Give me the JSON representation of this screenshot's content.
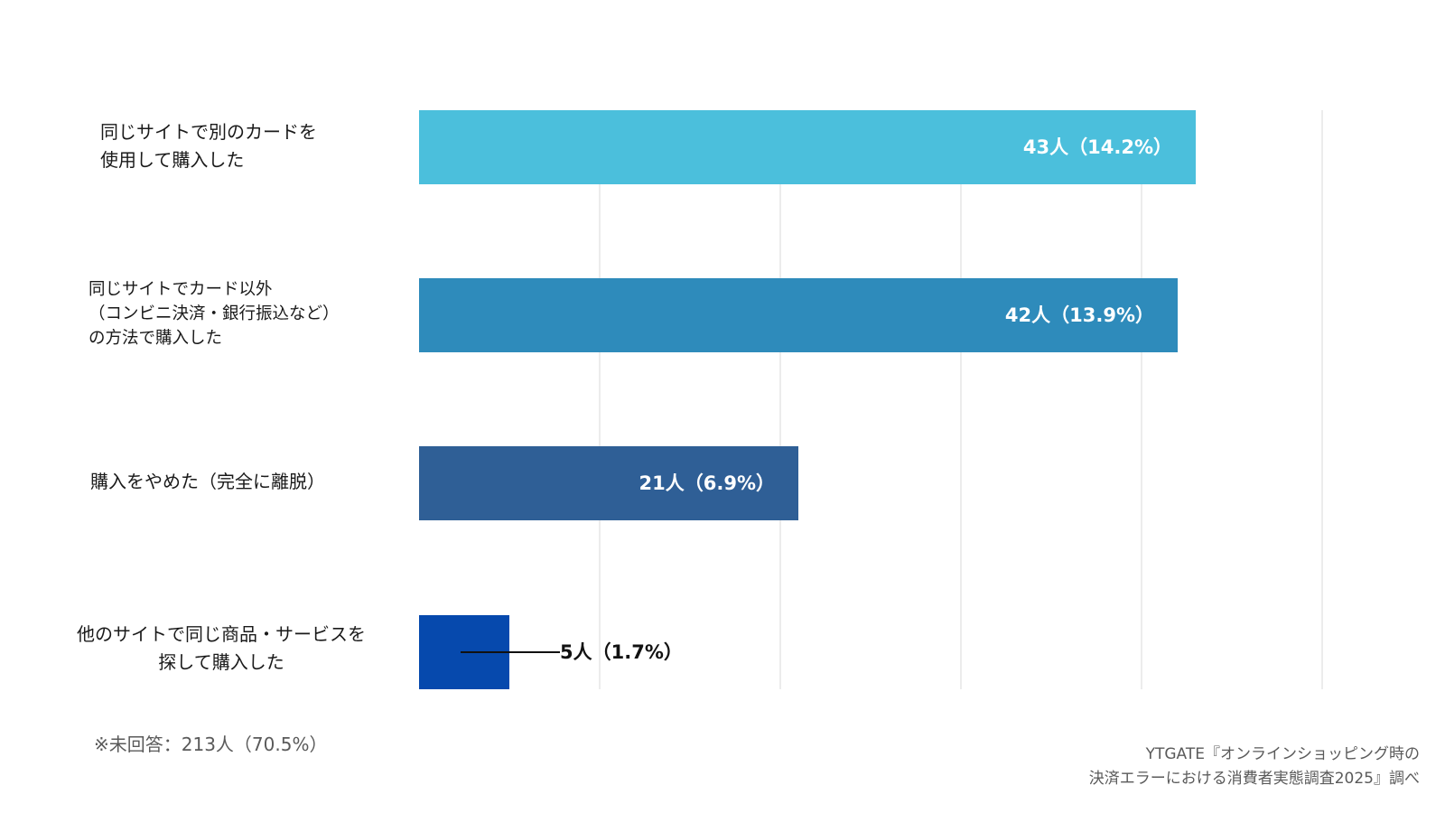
{
  "chart_data": {
    "type": "bar",
    "orientation": "horizontal",
    "categories": [
      [
        "同じサイトで別のカードを",
        "使用して購入した"
      ],
      [
        "同じサイトでカード以外",
        "（コンビニ決済・銀行振込など）",
        "の方法で購入した"
      ],
      [
        "購入をやめた（完全に離脱）"
      ],
      [
        "他のサイトで同じ商品・サービスを",
        "探して購入した"
      ]
    ],
    "values": [
      43,
      42,
      21,
      5
    ],
    "data_labels": [
      "43人（14.2%）",
      "42人（13.9%）",
      "21人（6.9%）",
      "5人（1.7%）"
    ],
    "colors": [
      "#4bbfdc",
      "#2e8bbb",
      "#2f5f96",
      "#0649ad"
    ],
    "xlim": [
      0,
      50
    ],
    "grid": true,
    "legend": "none"
  },
  "footnote": "※未回答：213人（70.5%）",
  "source": [
    "YTGATE『オンラインショッピング時の",
    "決済エラーにおける消費者実態調査2025』調べ"
  ]
}
